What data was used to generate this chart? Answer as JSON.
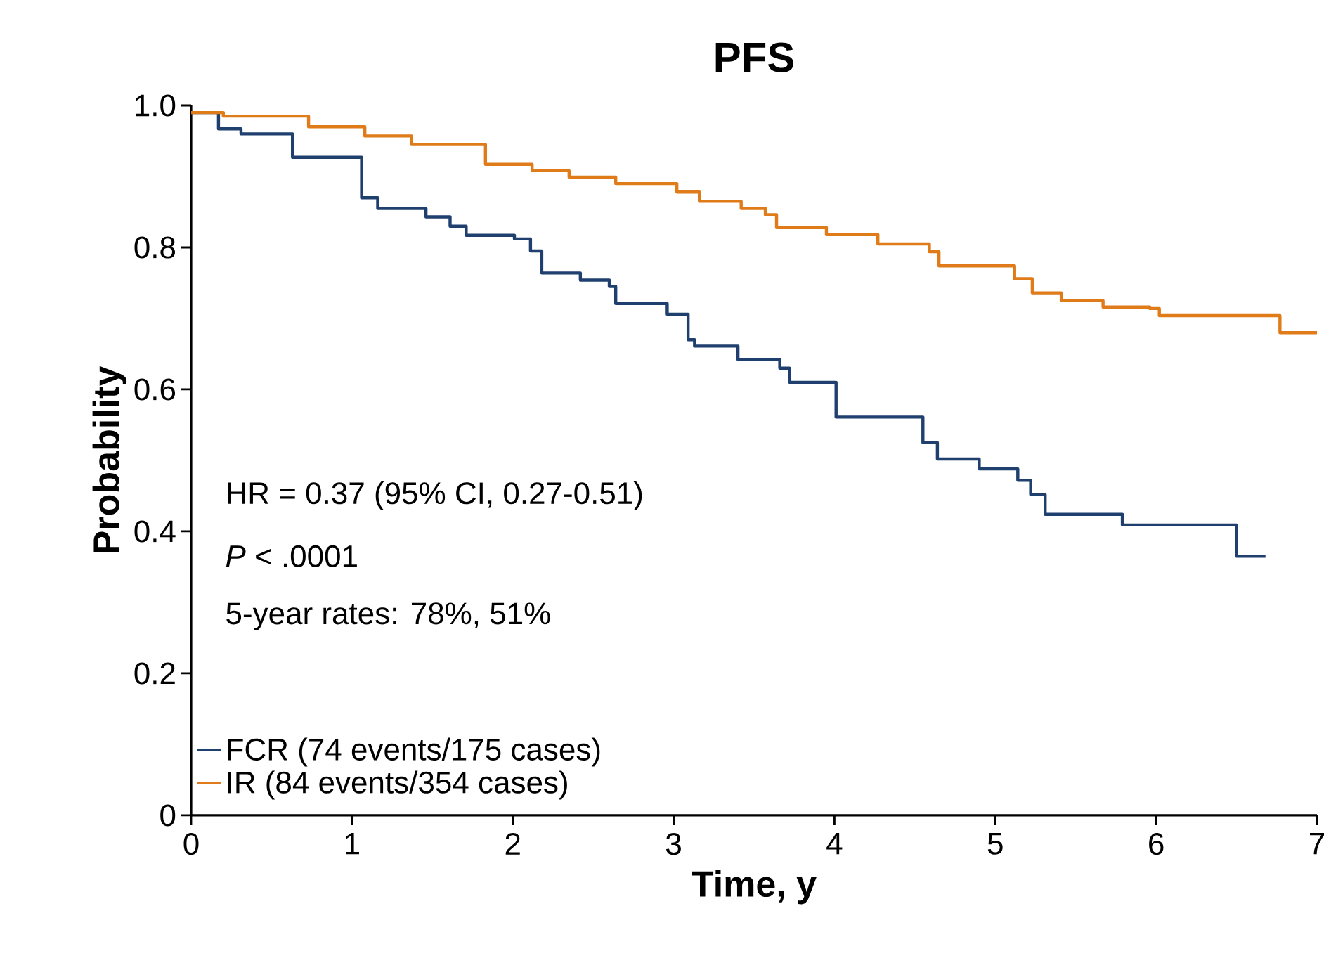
{
  "chart_data": {
    "type": "step",
    "title": "PFS",
    "xlabel": "Time, y",
    "ylabel": "Probability",
    "xlim": [
      0,
      7
    ],
    "xticks": [
      0,
      1,
      2,
      3,
      4,
      5,
      6,
      7
    ],
    "ylim": [
      0,
      1.0
    ],
    "yticks": [
      0,
      0.2,
      0.4,
      0.6,
      0.8,
      {
        "value": 1,
        "label": "1.0"
      }
    ],
    "annotations": [
      "HR = 0.37 (95% CI, 0.27-0.51)",
      "*P* < .0001",
      "5-year rates: 78%, 51%"
    ],
    "legend": "bottom left",
    "grid": false,
    "marker": "none",
    "line_style": "solid",
    "series": [
      {
        "name": "FCR (74 events/175 cases)",
        "color": "#1f3f6e",
        "x": [
          0,
          0.17,
          0.31,
          0.63,
          1.06,
          1.16,
          1.46,
          1.61,
          1.71,
          2.01,
          2.11,
          2.18,
          2.42,
          2.6,
          2.64,
          2.96,
          3.09,
          3.13,
          3.4,
          3.66,
          3.72,
          4.01,
          4.55,
          4.64,
          4.9,
          5.14,
          5.22,
          5.31,
          5.79,
          6.5,
          6.68
        ],
        "values": [
          0.99,
          0.967,
          0.96,
          0.927,
          0.87,
          0.855,
          0.843,
          0.83,
          0.817,
          0.812,
          0.795,
          0.764,
          0.754,
          0.745,
          0.721,
          0.706,
          0.67,
          0.661,
          0.642,
          0.63,
          0.61,
          0.561,
          0.525,
          0.502,
          0.488,
          0.472,
          0.452,
          0.424,
          0.409,
          0.365,
          0.365
        ]
      },
      {
        "name": "IR (84 events/354 cases)",
        "color": "#e07b1a",
        "x": [
          0,
          0.2,
          0.73,
          1.08,
          1.37,
          1.83,
          2.12,
          2.35,
          2.64,
          3.02,
          3.16,
          3.42,
          3.57,
          3.64,
          3.95,
          4.27,
          4.59,
          4.65,
          5.12,
          5.23,
          5.41,
          5.67,
          5.96,
          6.02,
          6.77,
          7.0
        ],
        "values": [
          0.99,
          0.985,
          0.97,
          0.957,
          0.945,
          0.917,
          0.908,
          0.899,
          0.89,
          0.878,
          0.865,
          0.855,
          0.846,
          0.828,
          0.818,
          0.805,
          0.794,
          0.774,
          0.756,
          0.736,
          0.725,
          0.716,
          0.714,
          0.704,
          0.68,
          0.68
        ]
      }
    ]
  }
}
